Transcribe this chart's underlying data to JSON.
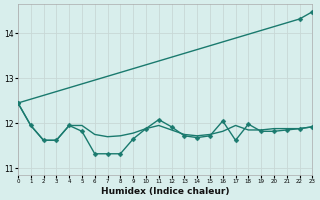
{
  "xlabel": "Humidex (Indice chaleur)",
  "bg_color": "#d8eeec",
  "grid_color_x": "#c8d8d6",
  "grid_color_y": "#c8d8d6",
  "line_color": "#1a7a6e",
  "xlim": [
    0,
    23
  ],
  "ylim": [
    10.85,
    14.65
  ],
  "yticks": [
    11,
    12,
    13,
    14
  ],
  "xticks": [
    0,
    1,
    2,
    3,
    4,
    5,
    6,
    7,
    8,
    9,
    10,
    11,
    12,
    13,
    14,
    15,
    16,
    17,
    18,
    19,
    20,
    21,
    22,
    23
  ],
  "line1_x": [
    0,
    1,
    2,
    3,
    4,
    5,
    6,
    7,
    8,
    9,
    10,
    11,
    12,
    13,
    14,
    15,
    16,
    17,
    18,
    19,
    20,
    21,
    22,
    23
  ],
  "line1_y": [
    12.45,
    11.95,
    11.62,
    11.62,
    11.95,
    11.95,
    11.75,
    11.7,
    11.72,
    11.78,
    11.88,
    11.95,
    11.85,
    11.75,
    11.72,
    11.75,
    11.82,
    11.95,
    11.85,
    11.85,
    11.88,
    11.88,
    11.88,
    11.92
  ],
  "line2_x": [
    0,
    1,
    2,
    3,
    4,
    5,
    6,
    7,
    8,
    9,
    10,
    11,
    12,
    13,
    14,
    15,
    16,
    17,
    18,
    19,
    20,
    21,
    22,
    23
  ],
  "line2_y": [
    12.45,
    11.95,
    11.62,
    11.62,
    11.95,
    11.82,
    11.32,
    11.32,
    11.32,
    11.65,
    11.88,
    12.08,
    11.92,
    11.72,
    11.68,
    11.72,
    12.05,
    11.62,
    11.98,
    11.82,
    11.82,
    11.85,
    11.88,
    11.92
  ],
  "line3_x": [
    0,
    22,
    23
  ],
  "line3_y": [
    12.45,
    14.32,
    14.48
  ],
  "marker_size": 2.5,
  "lw": 1.0
}
